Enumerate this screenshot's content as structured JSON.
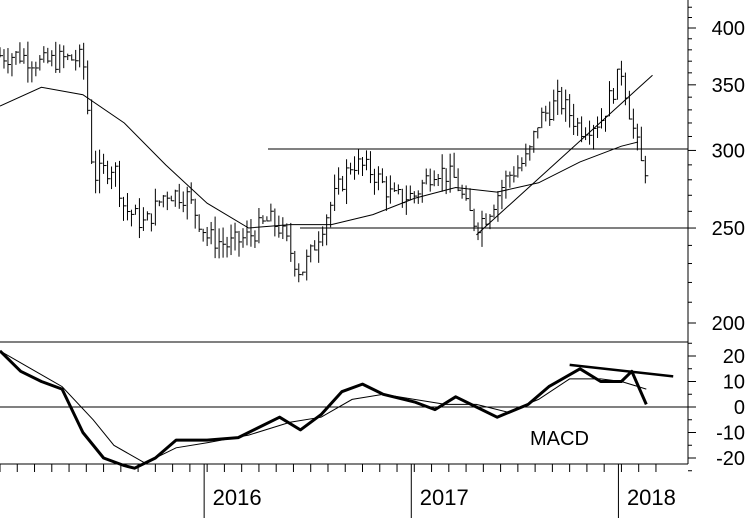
{
  "chart_data": [
    {
      "type": "line",
      "panel": "price",
      "scale": "log",
      "ylim": [
        190,
        430
      ],
      "y_ticks": [
        200,
        250,
        300,
        350,
        400
      ],
      "x_ticks": [
        "2016",
        "2017",
        "2018"
      ],
      "grid": false,
      "price_series_style": "bar (high-low)",
      "reference_lines": [
        {
          "kind": "horizontal",
          "value": 301
        },
        {
          "kind": "horizontal",
          "value": 250
        },
        {
          "kind": "trendline",
          "from": {
            "date": "2017.30",
            "value": 246
          },
          "to": {
            "date": "2018.15",
            "value": 358
          }
        }
      ],
      "series": [
        {
          "kind": "price",
          "points": [
            {
              "t": 2015.1,
              "v": 375
            },
            {
              "t": 2015.2,
              "v": 368
            },
            {
              "t": 2015.3,
              "v": 372
            },
            {
              "t": 2015.4,
              "v": 372
            },
            {
              "t": 2015.45,
              "v": 282
            },
            {
              "t": 2015.55,
              "v": 290
            },
            {
              "t": 2015.6,
              "v": 262
            },
            {
              "t": 2015.7,
              "v": 252
            },
            {
              "t": 2015.8,
              "v": 272
            },
            {
              "t": 2015.9,
              "v": 270
            },
            {
              "t": 2016.0,
              "v": 245
            },
            {
              "t": 2016.1,
              "v": 240
            },
            {
              "t": 2016.2,
              "v": 245
            },
            {
              "t": 2016.3,
              "v": 255
            },
            {
              "t": 2016.35,
              "v": 250
            },
            {
              "t": 2016.45,
              "v": 225
            },
            {
              "t": 2016.5,
              "v": 235
            },
            {
              "t": 2016.6,
              "v": 265
            },
            {
              "t": 2016.7,
              "v": 292
            },
            {
              "t": 2016.8,
              "v": 285
            },
            {
              "t": 2016.9,
              "v": 268
            },
            {
              "t": 2017.0,
              "v": 270
            },
            {
              "t": 2017.1,
              "v": 288
            },
            {
              "t": 2017.2,
              "v": 280
            },
            {
              "t": 2017.25,
              "v": 262
            },
            {
              "t": 2017.3,
              "v": 252
            },
            {
              "t": 2017.35,
              "v": 258
            },
            {
              "t": 2017.45,
              "v": 282
            },
            {
              "t": 2017.55,
              "v": 295
            },
            {
              "t": 2017.6,
              "v": 322
            },
            {
              "t": 2017.7,
              "v": 338
            },
            {
              "t": 2017.8,
              "v": 316
            },
            {
              "t": 2017.9,
              "v": 322
            },
            {
              "t": 2018.0,
              "v": 362
            },
            {
              "t": 2018.05,
              "v": 320
            },
            {
              "t": 2018.1,
              "v": 288
            }
          ]
        },
        {
          "kind": "moving-average",
          "points": [
            {
              "t": 2015.0,
              "v": 333
            },
            {
              "t": 2015.2,
              "v": 348
            },
            {
              "t": 2015.4,
              "v": 342
            },
            {
              "t": 2015.6,
              "v": 320
            },
            {
              "t": 2015.8,
              "v": 290
            },
            {
              "t": 2016.0,
              "v": 265
            },
            {
              "t": 2016.2,
              "v": 250
            },
            {
              "t": 2016.4,
              "v": 252
            },
            {
              "t": 2016.6,
              "v": 252
            },
            {
              "t": 2016.8,
              "v": 258
            },
            {
              "t": 2017.0,
              "v": 268
            },
            {
              "t": 2017.2,
              "v": 275
            },
            {
              "t": 2017.4,
              "v": 272
            },
            {
              "t": 2017.6,
              "v": 278
            },
            {
              "t": 2017.8,
              "v": 292
            },
            {
              "t": 2018.0,
              "v": 303
            },
            {
              "t": 2018.08,
              "v": 306
            }
          ]
        }
      ]
    },
    {
      "type": "line",
      "panel": "indicator",
      "label": "MACD",
      "ylim": [
        -27,
        25
      ],
      "y_ticks": [
        20,
        10,
        0,
        -10,
        -20
      ],
      "x_ticks": [
        "2016",
        "2017",
        "2018"
      ],
      "grid": false,
      "reference_lines": [
        {
          "kind": "horizontal",
          "value": 0
        },
        {
          "kind": "trendline",
          "from": {
            "date": "2017.75",
            "value": 16.5
          },
          "to": {
            "date": "2018.25",
            "value": 12
          }
        }
      ],
      "series": [
        {
          "kind": "macd",
          "points": [
            {
              "t": 2015.0,
              "v": 22
            },
            {
              "t": 2015.1,
              "v": 14
            },
            {
              "t": 2015.2,
              "v": 10
            },
            {
              "t": 2015.3,
              "v": 7
            },
            {
              "t": 2015.4,
              "v": -10
            },
            {
              "t": 2015.5,
              "v": -20
            },
            {
              "t": 2015.6,
              "v": -23
            },
            {
              "t": 2015.65,
              "v": -24
            },
            {
              "t": 2015.75,
              "v": -20
            },
            {
              "t": 2015.85,
              "v": -13
            },
            {
              "t": 2016.0,
              "v": -13
            },
            {
              "t": 2016.15,
              "v": -12
            },
            {
              "t": 2016.25,
              "v": -8
            },
            {
              "t": 2016.35,
              "v": -4
            },
            {
              "t": 2016.45,
              "v": -9
            },
            {
              "t": 2016.55,
              "v": -3
            },
            {
              "t": 2016.65,
              "v": 6
            },
            {
              "t": 2016.75,
              "v": 9
            },
            {
              "t": 2016.85,
              "v": 5
            },
            {
              "t": 2017.0,
              "v": 2
            },
            {
              "t": 2017.1,
              "v": -1
            },
            {
              "t": 2017.2,
              "v": 4
            },
            {
              "t": 2017.3,
              "v": 0
            },
            {
              "t": 2017.4,
              "v": -4
            },
            {
              "t": 2017.55,
              "v": 1
            },
            {
              "t": 2017.65,
              "v": 8
            },
            {
              "t": 2017.8,
              "v": 15
            },
            {
              "t": 2017.9,
              "v": 10
            },
            {
              "t": 2018.0,
              "v": 10
            },
            {
              "t": 2018.05,
              "v": 14
            },
            {
              "t": 2018.12,
              "v": 1
            }
          ]
        },
        {
          "kind": "signal",
          "points": [
            {
              "t": 2015.0,
              "v": 22
            },
            {
              "t": 2015.15,
              "v": 15
            },
            {
              "t": 2015.3,
              "v": 8
            },
            {
              "t": 2015.45,
              "v": -5
            },
            {
              "t": 2015.55,
              "v": -15
            },
            {
              "t": 2015.7,
              "v": -22
            },
            {
              "t": 2015.85,
              "v": -16
            },
            {
              "t": 2016.0,
              "v": -14
            },
            {
              "t": 2016.2,
              "v": -11
            },
            {
              "t": 2016.4,
              "v": -6
            },
            {
              "t": 2016.55,
              "v": -4
            },
            {
              "t": 2016.7,
              "v": 3
            },
            {
              "t": 2016.85,
              "v": 5
            },
            {
              "t": 2017.0,
              "v": 3
            },
            {
              "t": 2017.15,
              "v": 1
            },
            {
              "t": 2017.3,
              "v": 1
            },
            {
              "t": 2017.45,
              "v": -2
            },
            {
              "t": 2017.6,
              "v": 3
            },
            {
              "t": 2017.75,
              "v": 11
            },
            {
              "t": 2017.9,
              "v": 11
            },
            {
              "t": 2018.0,
              "v": 10
            },
            {
              "t": 2018.12,
              "v": 7
            }
          ]
        }
      ]
    }
  ]
}
